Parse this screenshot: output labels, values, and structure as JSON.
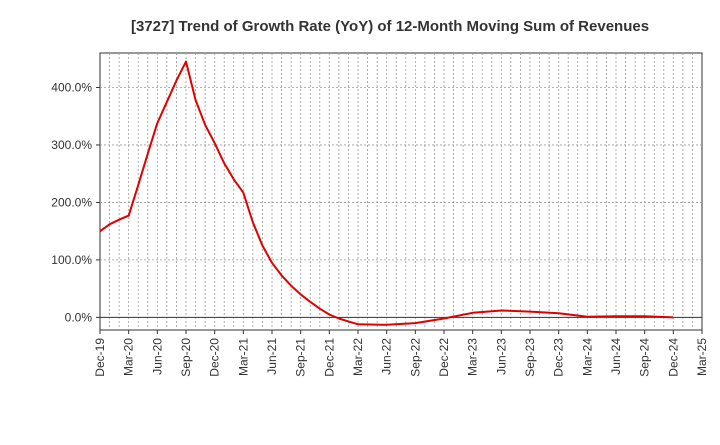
{
  "chart_data": {
    "type": "line",
    "title": "[3727]  Trend of Growth Rate (YoY) of 12-Month Moving Sum of Revenues",
    "xlabel": "",
    "ylabel": "",
    "x_tick_labels": [
      "Dec-19",
      "Mar-20",
      "Jun-20",
      "Sep-20",
      "Dec-20",
      "Mar-21",
      "Jun-21",
      "Sep-21",
      "Dec-21",
      "Mar-22",
      "Jun-22",
      "Sep-22",
      "Dec-22",
      "Mar-23",
      "Jun-23",
      "Sep-23",
      "Dec-23",
      "Mar-24",
      "Jun-24",
      "Sep-24",
      "Dec-24",
      "Mar-25"
    ],
    "y_ticks": [
      0,
      100,
      200,
      300,
      400
    ],
    "y_tick_labels": [
      "0.0%",
      "100.0%",
      "200.0%",
      "300.0%",
      "400.0%"
    ],
    "ylim": [
      -22,
      460
    ],
    "x_month_range": [
      "Dec-19",
      "Mar-25"
    ],
    "grid": true,
    "legend": "none",
    "line_color": "#e00000",
    "series": [
      {
        "x": [
          "Dec-19",
          "Jan-20",
          "Feb-20",
          "Mar-20",
          "Apr-20",
          "May-20",
          "Jun-20",
          "Jul-20",
          "Aug-20",
          "Sep-20",
          "Oct-20",
          "Nov-20",
          "Dec-20",
          "Jan-21",
          "Feb-21",
          "Mar-21",
          "Apr-21",
          "May-21",
          "Jun-21",
          "Jul-21",
          "Aug-21",
          "Sep-21",
          "Oct-21",
          "Nov-21",
          "Dec-21",
          "Jan-22",
          "Feb-22",
          "Mar-22",
          "Jun-22",
          "Sep-22",
          "Dec-22",
          "Mar-23",
          "Jun-23",
          "Sep-23",
          "Dec-23",
          "Mar-24",
          "Jun-24",
          "Sep-24",
          "Dec-24"
        ],
        "values": [
          150,
          162,
          170,
          177,
          230,
          285,
          338,
          375,
          412,
          445,
          378,
          335,
          303,
          268,
          240,
          217,
          165,
          125,
          95,
          73,
          55,
          40,
          27,
          15,
          5,
          -2,
          -7,
          -12,
          -13,
          -10,
          -2,
          8,
          12,
          10,
          7,
          1,
          2,
          2,
          0
        ]
      }
    ]
  }
}
